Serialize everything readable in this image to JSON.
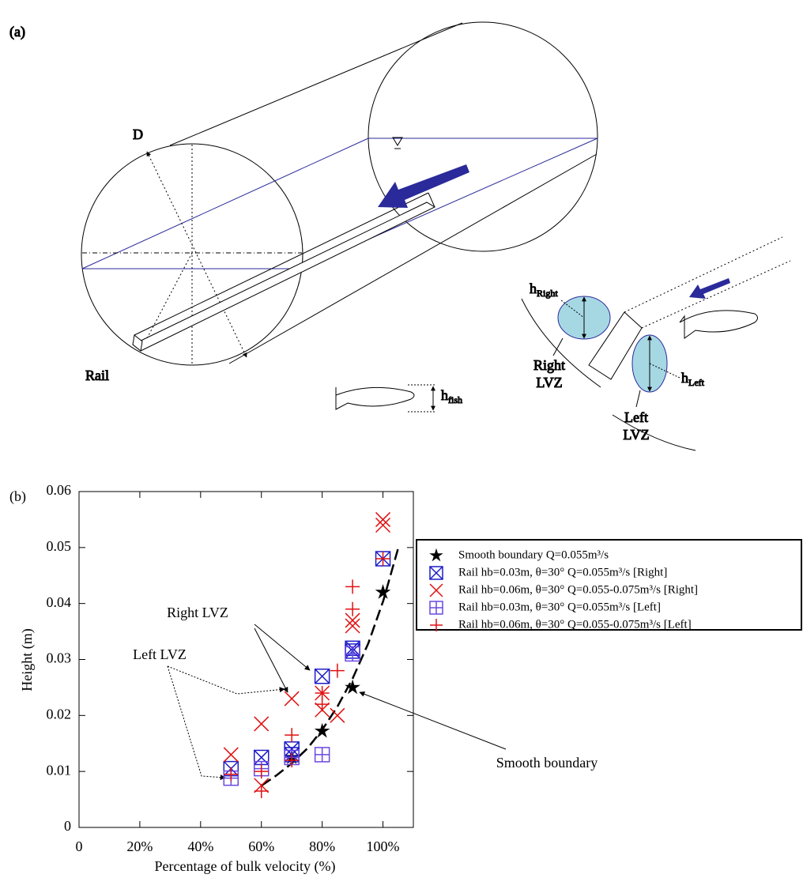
{
  "figure_a": {
    "panel_label": "(a)",
    "labels": {
      "diameter": "D",
      "rail": "Rail",
      "h_right": {
        "base": "h",
        "sub": "Right"
      },
      "h_left": {
        "base": "h",
        "sub": "Left"
      },
      "h_fish": {
        "base": "h",
        "sub": "fish"
      },
      "right_lvz": [
        "Right",
        "LVZ"
      ],
      "left_lvz": [
        "Left",
        "LVZ"
      ]
    }
  },
  "chart_data": {
    "type": "scatter",
    "panel_label": "(b)",
    "x_label": "Percentage of bulk velocity (%)",
    "y_label": "Height (m)",
    "xlim": [
      0,
      110
    ],
    "ylim": [
      0,
      0.06
    ],
    "xticks": [
      0,
      {
        "value": 20,
        "label": "20%"
      },
      {
        "value": 40,
        "label": "40%"
      },
      {
        "value": 60,
        "label": "60%"
      },
      {
        "value": 80,
        "label": "80%"
      },
      {
        "value": 100,
        "label": "100%"
      }
    ],
    "yticks": [
      0,
      0.01,
      0.02,
      0.03,
      0.04,
      0.05,
      0.06
    ],
    "legend": "right",
    "annotations": [
      "Right LVZ",
      "Left LVZ",
      "Smooth boundary"
    ],
    "series": [
      {
        "name": "Smooth boundary Q=0.055m³/s",
        "marker": "star",
        "color": "#000000",
        "x": [
          70,
          80,
          90,
          100
        ],
        "values": [
          0.0125,
          0.0172,
          0.025,
          0.042
        ]
      },
      {
        "name": "Rail hb=0.03m, θ=30° Q=0.055m³/s [Right]",
        "marker": "boxed-x",
        "color": "#1c1cc8",
        "x": [
          50,
          60,
          70,
          70,
          80,
          90,
          90,
          100
        ],
        "values": [
          0.0105,
          0.0125,
          0.014,
          0.013,
          0.027,
          0.032,
          0.0315,
          0.048
        ]
      },
      {
        "name": "Rail hb=0.06m, θ=30° Q=0.055-0.075m³/s [Right]",
        "marker": "x",
        "color": "#e01010",
        "x": [
          50,
          60,
          60,
          70,
          80,
          80,
          85,
          90,
          90,
          100,
          100
        ],
        "values": [
          0.013,
          0.0185,
          0.0075,
          0.023,
          0.024,
          0.021,
          0.02,
          0.037,
          0.036,
          0.055,
          0.054
        ]
      },
      {
        "name": "Rail hb=0.03m, θ=30° Q=0.055m³/s [Left]",
        "marker": "boxed-plus",
        "color": "#6a48e0",
        "x": [
          50,
          60,
          70,
          80,
          90
        ],
        "values": [
          0.0088,
          0.0105,
          0.0125,
          0.013,
          0.031
        ]
      },
      {
        "name": "Rail hb=0.06m, θ=30° Q=0.055-0.075m³/s [Left]",
        "marker": "plus",
        "color": "#e01010",
        "x": [
          50,
          60,
          60,
          70,
          70,
          80,
          80,
          85,
          90,
          90,
          100
        ],
        "values": [
          0.0095,
          0.0065,
          0.01,
          0.0165,
          0.012,
          0.022,
          0.024,
          0.028,
          0.043,
          0.039,
          0.048
        ]
      }
    ]
  }
}
